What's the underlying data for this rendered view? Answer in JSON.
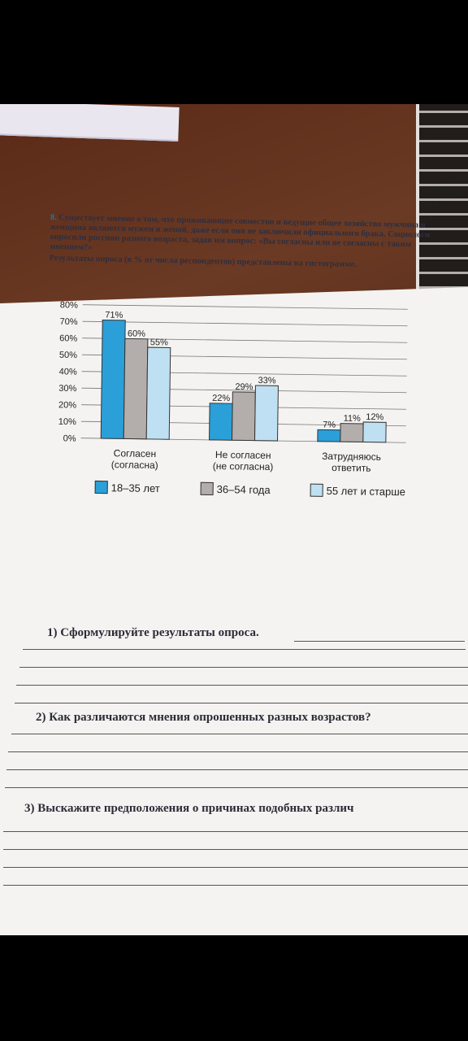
{
  "task": {
    "number": "8.",
    "text": "Существует мнение о том, что проживающие совместно и ведущие общее хозяйство мужчина и женщина являются мужем и женой, даже если они не заключили официального брака. Социологи опросили россиян разного возраста, задав им вопрос: «Вы согласны или не согласны с таким мнением?»",
    "intro": "Результаты опроса (в % от числа респондентов) представлены на гистограмме."
  },
  "chart_data": {
    "type": "bar",
    "categories": [
      "Согласен (согласна)",
      "Не согласен (не согласна)",
      "Затрудняюсь ответить"
    ],
    "category_lines": [
      [
        "Согласен",
        "(согласна)"
      ],
      [
        "Не согласен",
        "(не согласна)"
      ],
      [
        "Затрудняюсь",
        "ответить"
      ]
    ],
    "series": [
      {
        "name": "18–35 лет",
        "values": [
          71,
          22,
          7
        ],
        "color": "#2b9fd8"
      },
      {
        "name": "36–54 года",
        "values": [
          60,
          29,
          11
        ],
        "color": "#b3aeab"
      },
      {
        "name": "55 лет и старше",
        "values": [
          55,
          33,
          12
        ],
        "color": "#bfe0f2"
      }
    ],
    "y_ticks": [
      "0%",
      "10%",
      "20%",
      "30%",
      "40%",
      "50%",
      "60%",
      "70%",
      "80%"
    ],
    "ylim": [
      0,
      80
    ],
    "grid": true,
    "legend_position": "bottom"
  },
  "questions": [
    "1) Сформулируйте результаты опроса.",
    "2) Как различаются мнения опрошенных разных возрастов?",
    "3) Выскажите предположения о причинах подобных различ"
  ]
}
